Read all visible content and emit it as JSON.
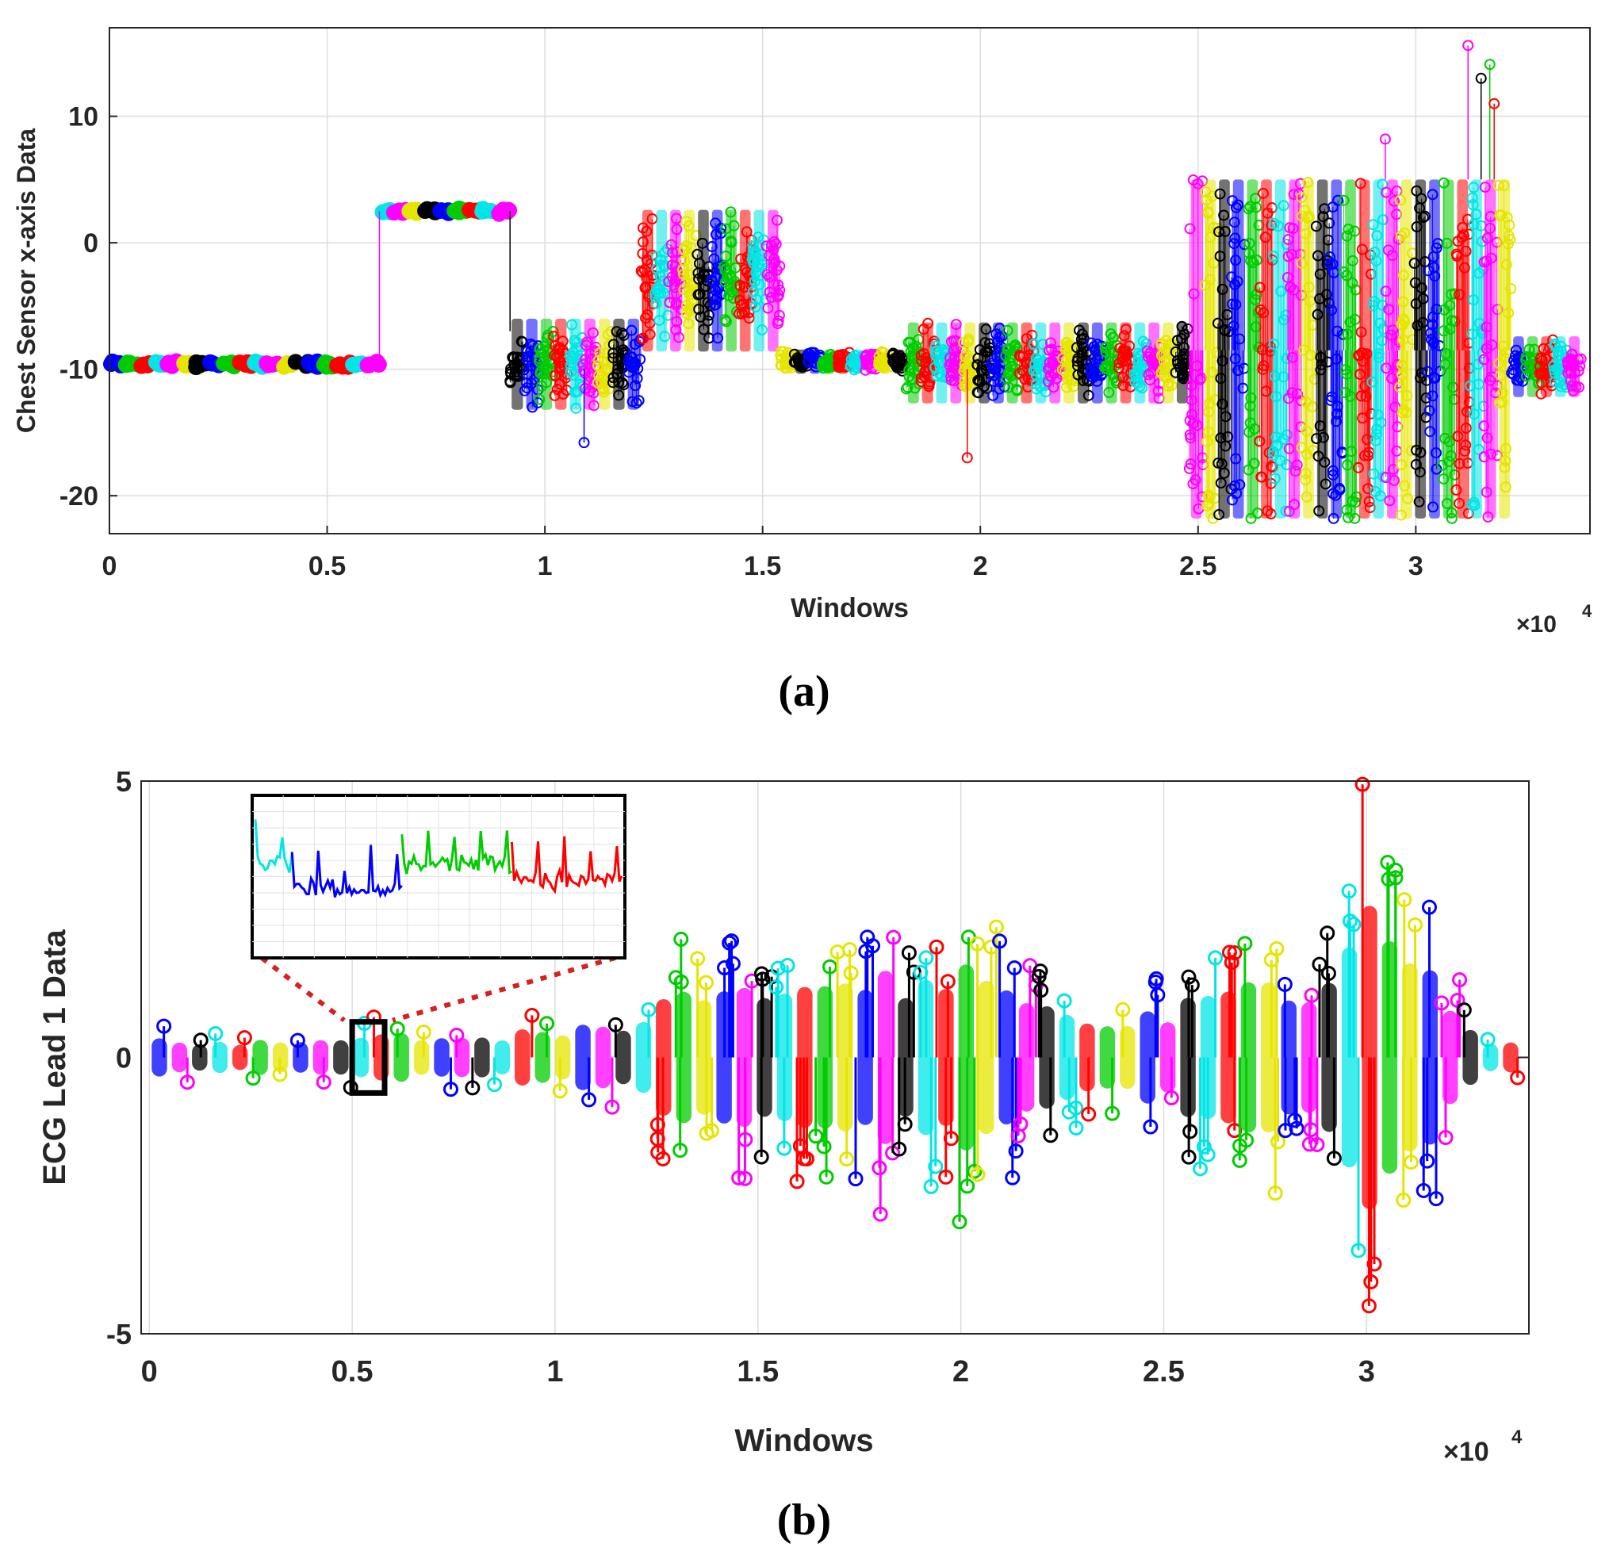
{
  "chart_data": [
    {
      "id": "a",
      "type": "scatter",
      "marker": "circle-stem",
      "caption": "(a)",
      "xlabel": "Windows",
      "ylabel": "Chest Sensor x-axis Data",
      "x_exponent_label": "×10",
      "x_exponent": "4",
      "xlim": [
        0,
        3.4
      ],
      "ylim": [
        -23,
        17
      ],
      "xticks": [
        0,
        0.5,
        1,
        1.5,
        2,
        2.5,
        3
      ],
      "xtick_labels": [
        "0",
        "0.5",
        "1",
        "1.5",
        "2",
        "2.5",
        "3"
      ],
      "yticks": [
        10,
        0,
        -10,
        -20
      ],
      "ytick_labels": [
        "10",
        "0",
        "-10",
        "-20"
      ],
      "grid": true,
      "series_colors": [
        "#0000ff",
        "#00cc00",
        "#ff0000",
        "#00e5e5",
        "#ff00ff",
        "#e5e500",
        "#000000"
      ],
      "segments": [
        {
          "x_start": 0.0,
          "x_end": 0.62,
          "center": -9.6,
          "spread": 0.35
        },
        {
          "x_start": 0.62,
          "x_end": 0.92,
          "center": 2.5,
          "spread": 0.3
        },
        {
          "x_start": 0.92,
          "x_end": 1.22,
          "center": -9.6,
          "spread": 4.5
        },
        {
          "x_start": 1.22,
          "x_end": 1.54,
          "center": -3.0,
          "spread": 7.0
        },
        {
          "x_start": 1.54,
          "x_end": 1.83,
          "center": -9.4,
          "spread": 1.2
        },
        {
          "x_start": 1.83,
          "x_end": 2.48,
          "center": -9.5,
          "spread": 4.0
        },
        {
          "x_start": 2.48,
          "x_end": 3.22,
          "center": -8.5,
          "spread": 13.5
        },
        {
          "x_start": 3.22,
          "x_end": 3.38,
          "center": -9.8,
          "spread": 3.0
        }
      ]
    },
    {
      "id": "b",
      "type": "scatter",
      "marker": "circle-stem",
      "caption": "(b)",
      "xlabel": "Windows",
      "ylabel": "ECG Lead 1 Data",
      "x_exponent_label": "×10",
      "x_exponent": "4",
      "xlim": [
        -0.02,
        3.4
      ],
      "ylim": [
        -5,
        5
      ],
      "xticks": [
        0,
        0.5,
        1,
        1.5,
        2,
        2.5,
        3
      ],
      "xtick_labels": [
        "0",
        "0.5",
        "1",
        "1.5",
        "2",
        "2.5",
        "3"
      ],
      "yticks": [
        5,
        0,
        -5
      ],
      "ytick_labels": [
        "5",
        "0",
        "-5"
      ],
      "grid": true,
      "inset": {
        "zoom_x_range": [
          0.5,
          0.58
        ],
        "zoom_y_range": [
          -0.5,
          0.5
        ],
        "series_shown": [
          "#00e5e5",
          "#0000ff",
          "#00cc00",
          "#ff0000"
        ]
      },
      "envelope": [
        {
          "x": 0.0,
          "amp": 0.5
        },
        {
          "x": 0.5,
          "amp": 0.6
        },
        {
          "x": 1.0,
          "amp": 0.8
        },
        {
          "x": 1.2,
          "amp": 1.0
        },
        {
          "x": 1.3,
          "amp": 1.8
        },
        {
          "x": 1.5,
          "amp": 2.2
        },
        {
          "x": 1.7,
          "amp": 2.0
        },
        {
          "x": 1.9,
          "amp": 2.5
        },
        {
          "x": 2.0,
          "amp": 3.2
        },
        {
          "x": 2.15,
          "amp": 2.2
        },
        {
          "x": 2.3,
          "amp": 1.2
        },
        {
          "x": 2.5,
          "amp": 1.5
        },
        {
          "x": 2.7,
          "amp": 2.0
        },
        {
          "x": 2.9,
          "amp": 2.4
        },
        {
          "x": 3.0,
          "amp": 4.2
        },
        {
          "x": 3.1,
          "amp": 3.0
        },
        {
          "x": 3.2,
          "amp": 1.8
        },
        {
          "x": 3.3,
          "amp": 0.6
        },
        {
          "x": 3.38,
          "amp": 0.5
        }
      ]
    }
  ]
}
